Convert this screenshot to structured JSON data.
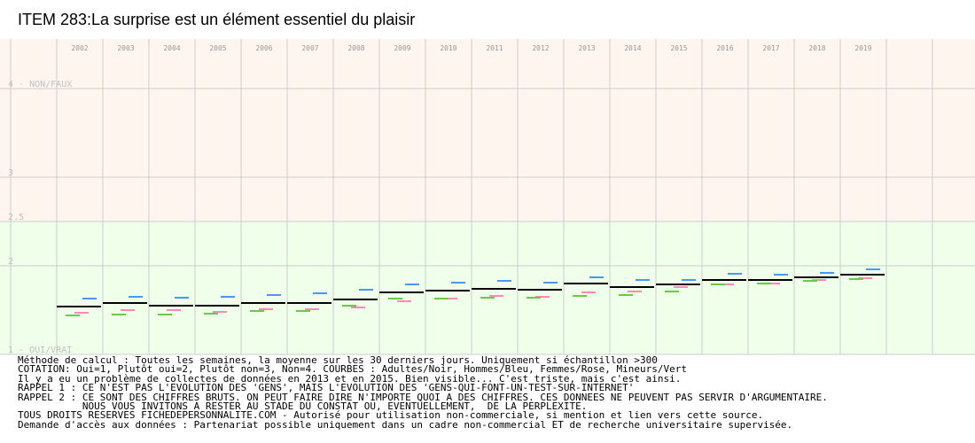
{
  "title": "ITEM 283:La surprise est un élément essentiel du plaisir",
  "chart_data": {
    "type": "line",
    "title": "ITEM 283:La surprise est un élément essentiel du plaisir",
    "categories": [
      "2002",
      "2003",
      "2004",
      "2005",
      "2006",
      "2007",
      "2008",
      "2009",
      "2010",
      "2011",
      "2012",
      "2013",
      "2014",
      "2015",
      "2016",
      "2017",
      "2018",
      "2019"
    ],
    "ylim": [
      1,
      4.2
    ],
    "y_tick_labels": [
      {
        "value": 4,
        "label": "4 - NON/FAUX"
      },
      {
        "value": 3,
        "label": "3"
      },
      {
        "value": 2.5,
        "label": "2.5"
      },
      {
        "value": 2,
        "label": "2"
      },
      {
        "value": 1,
        "label": "1 - OUI/VRAI"
      }
    ],
    "band_split": 2.5,
    "band_colors": {
      "upper": "#fff5ef",
      "lower": "#efffea"
    },
    "grid": true,
    "grid_color": "#cccccc",
    "series": [
      {
        "color": "#000000",
        "values": [
          1.54,
          1.58,
          1.55,
          1.55,
          1.58,
          1.58,
          1.62,
          1.7,
          1.72,
          1.74,
          1.73,
          1.8,
          1.76,
          1.79,
          1.84,
          1.84,
          1.87,
          1.9
        ]
      },
      {
        "color": "#4499ff",
        "values": [
          1.63,
          1.65,
          1.64,
          1.65,
          1.67,
          1.69,
          1.73,
          1.79,
          1.81,
          1.83,
          1.81,
          1.87,
          1.84,
          1.84,
          1.91,
          1.9,
          1.92,
          1.96
        ]
      },
      {
        "color": "#ff88bb",
        "values": [
          1.47,
          1.5,
          1.5,
          1.48,
          1.51,
          1.51,
          1.53,
          1.6,
          1.63,
          1.66,
          1.65,
          1.7,
          1.71,
          1.76,
          1.79,
          1.8,
          1.84,
          1.86
        ]
      },
      {
        "color": "#66cc44",
        "values": [
          1.44,
          1.45,
          1.45,
          1.46,
          1.49,
          1.49,
          1.55,
          1.63,
          1.63,
          1.64,
          1.64,
          1.66,
          1.67,
          1.71,
          1.79,
          1.8,
          1.83,
          1.85
        ]
      }
    ]
  },
  "notes": [
    "Méthode de calcul : Toutes les semaines, la moyenne sur les 30 derniers jours. Uniquement si échantillon >300",
    "COTATION: Oui=1, Plutôt oui=2, Plutôt non=3, Non=4. COURBES : Adultes/Noir, Hommes/Bleu, Femmes/Rose, Mineurs/Vert",
    "Il y a eu un problème de collectes de données en 2013 et en 2015. Bien visible... C'est triste, mais c'est ainsi.",
    "RAPPEL 1 : CE N'EST PAS L'EVOLUTION DES 'GENS', MAIS L'EVOLUTION DES 'GENS-QUI-FONT-UN-TEST-SUR-INTERNET'",
    "RAPPEL 2 : CE SONT DES CHIFFRES BRUTS. ON PEUT FAIRE DIRE N'IMPORTE QUOI A DES CHIFFRES. CES DONNEES NE PEUVENT PAS SERVIR D'ARGUMENTAIRE.",
    "           NOUS VOUS INVITONS A RESTER AU STADE DU CONSTAT OU, EVENTUELLEMENT,  DE LA PERPLEXITE.",
    "TOUS DROITS RESERVES FICHEDEPERSONNALITE.COM - Autorisé pour utilisation non-commerciale, si mention et lien vers cette source.",
    "Demande d'accès aux données : Partenariat possible uniquement dans un cadre non-commercial ET de recherche universitaire supervisée."
  ]
}
